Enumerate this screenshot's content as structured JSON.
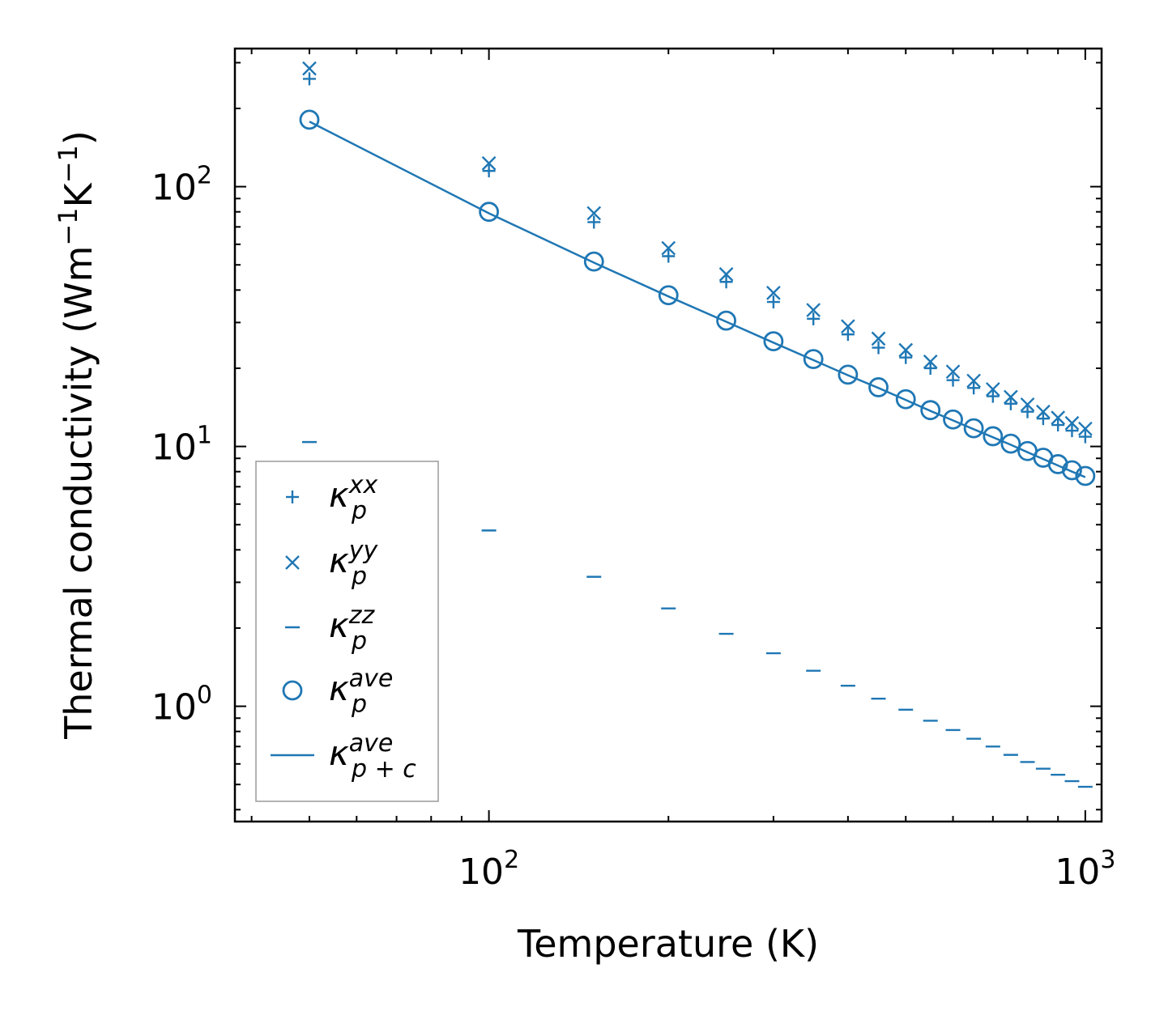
{
  "chart_data": {
    "type": "scatter",
    "title": "",
    "xlabel": "Temperature (K)",
    "ylabel_main": "Thermal conductivity (Wm",
    "ylabel_sup1": "−1",
    "ylabel_mid": "K",
    "ylabel_sup2": "−1",
    "ylabel_end": ")",
    "xscale": "log",
    "yscale": "log",
    "xlim": [
      37.5,
      1065
    ],
    "ylim": [
      0.36,
      340
    ],
    "xtick_labels": [
      {
        "base": "10",
        "exp": "2",
        "value": 100
      },
      {
        "base": "10",
        "exp": "3",
        "value": 1000
      }
    ],
    "ytick_labels": [
      {
        "base": "10",
        "exp": "0",
        "value": 1
      },
      {
        "base": "10",
        "exp": "1",
        "value": 10
      },
      {
        "base": "10",
        "exp": "2",
        "value": 100
      }
    ],
    "x": [
      50,
      100,
      150,
      200,
      250,
      300,
      350,
      400,
      450,
      500,
      550,
      600,
      650,
      700,
      750,
      800,
      850,
      900,
      950,
      1000
    ],
    "series": [
      {
        "name": "kappa_p_xx",
        "label_base": "κ",
        "label_sub": "p",
        "label_sup": "xx",
        "marker": "plus",
        "values": [
          260,
          115,
          73,
          54,
          43,
          36,
          31,
          27,
          24,
          22,
          20,
          18,
          16.8,
          15.6,
          14.6,
          13.6,
          12.8,
          12.1,
          11.5,
          10.9
        ]
      },
      {
        "name": "kappa_p_yy",
        "label_base": "κ",
        "label_sup": "yy",
        "label_sub": "p",
        "marker": "x",
        "values": [
          285,
          123,
          79,
          58,
          46,
          39,
          33.5,
          29,
          26,
          23.5,
          21.2,
          19.4,
          17.9,
          16.6,
          15.5,
          14.5,
          13.6,
          12.9,
          12.3,
          11.7
        ]
      },
      {
        "name": "kappa_p_zz",
        "label_base": "κ",
        "label_sup": "zz",
        "label_sub": "p",
        "marker": "hline",
        "values": [
          10.4,
          4.75,
          3.15,
          2.38,
          1.9,
          1.6,
          1.37,
          1.2,
          1.07,
          0.97,
          0.88,
          0.81,
          0.75,
          0.7,
          0.65,
          0.61,
          0.575,
          0.545,
          0.515,
          0.49
        ]
      },
      {
        "name": "kappa_p_ave",
        "label_base": "κ",
        "label_sup": "ave",
        "label_sub": "p",
        "marker": "circle",
        "values": [
          181,
          80,
          51.5,
          38.2,
          30.5,
          25.4,
          21.7,
          18.9,
          16.9,
          15.2,
          13.8,
          12.7,
          11.75,
          10.95,
          10.25,
          9.6,
          9.05,
          8.55,
          8.1,
          7.7
        ]
      },
      {
        "name": "kappa_p_plus_c_ave",
        "label_base": "κ",
        "label_sup": "ave",
        "label_sub": "p + c",
        "marker": "line",
        "values": [
          178,
          79,
          51,
          37.8,
          30.2,
          25.1,
          21.5,
          18.8,
          16.8,
          15.1,
          13.7,
          12.6,
          11.65,
          10.85,
          10.15,
          9.5,
          8.95,
          8.45,
          8.0,
          7.62
        ]
      }
    ],
    "legend_position": "lower-left",
    "grid": false,
    "color": "#1f77b4"
  }
}
